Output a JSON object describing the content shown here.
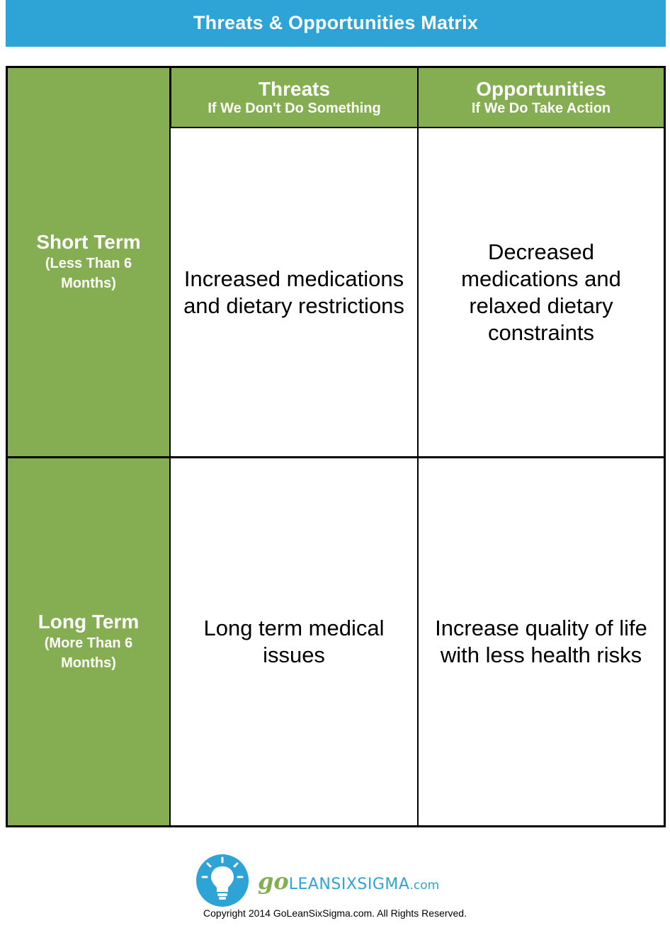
{
  "title": "Threats & Opportunities Matrix",
  "columns": [
    {
      "heading": "Threats",
      "subheading": "If We Don't Do Something"
    },
    {
      "heading": "Opportunities",
      "subheading": "If We Do Take Action"
    }
  ],
  "rows": [
    {
      "heading": "Short Term",
      "subheading": "(Less Than 6 Months)",
      "threat": "Increased medications and dietary restrictions",
      "opportunity": "Decreased medications and relaxed dietary constraints"
    },
    {
      "heading": "Long Term",
      "subheading": "(More Than 6 Months)",
      "threat": "Long term medical issues",
      "opportunity": "Increase quality of life with less health risks"
    }
  ],
  "footer": {
    "logo": {
      "icon": "lightbulb-icon",
      "go": "go",
      "name": "LEANSIXSIGMA",
      "suffix": ".com"
    },
    "copyright": "Copyright 2014 GoLeanSixSigma.com. All Rights Reserved."
  },
  "colors": {
    "title_bar": "#2ea3d6",
    "header_green": "#84ae51",
    "border": "#000000"
  }
}
